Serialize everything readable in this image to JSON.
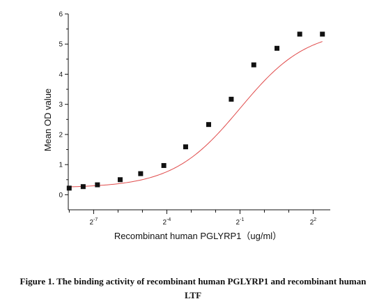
{
  "chart_data": {
    "type": "scatter",
    "title": "",
    "xlabel": "Recombinant human PGLYRP1（ug/ml）",
    "ylabel": "Mean OD value",
    "x_scale": "log2",
    "xlim": [
      0.0038,
      6.5
    ],
    "ylim": [
      -0.5,
      6
    ],
    "x_tick_labels": [
      {
        "base": "2",
        "exp": "-7",
        "value": 0.0078125
      },
      {
        "base": "2",
        "exp": "-4",
        "value": 0.0625
      },
      {
        "base": "2",
        "exp": "-1",
        "value": 0.5
      },
      {
        "base": "2",
        "exp": "2",
        "value": 4
      }
    ],
    "y_ticks": [
      0,
      1,
      2,
      3,
      4,
      5,
      6
    ],
    "series": [
      {
        "marker": "square",
        "color": "#111111",
        "x": [
          0.0039,
          0.0058,
          0.0087,
          0.0166,
          0.0297,
          0.0574,
          0.1067,
          0.2053,
          0.39,
          0.74,
          1.43,
          2.73,
          5.2
        ],
        "y": [
          0.22,
          0.27,
          0.33,
          0.5,
          0.7,
          0.97,
          1.59,
          2.33,
          3.17,
          4.31,
          4.86,
          5.33,
          5.33
        ]
      }
    ],
    "fit_curve": {
      "type": "4PL",
      "color": "#e04a4a",
      "bottom": 0.23,
      "top": 5.5,
      "ec50": 0.5,
      "hill": 1.05
    },
    "grid": false,
    "legend": "none"
  },
  "caption": {
    "line1": "Figure 1. The binding activity of recombinant human PGLYRP1 and recombinant human",
    "line2": "LTF"
  }
}
